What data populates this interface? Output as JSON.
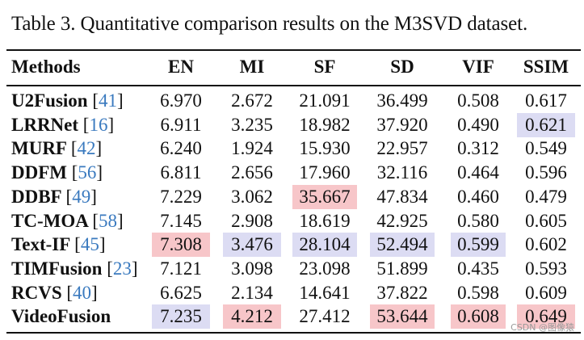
{
  "caption": "Table 3. Quantitative comparison results on the M3SVD dataset.",
  "headers": [
    "Methods",
    "EN",
    "MI",
    "SF",
    "SD",
    "VIF",
    "SSIM"
  ],
  "rows": [
    {
      "name": "U2Fusion",
      "ref": "41",
      "values": [
        "6.970",
        "2.672",
        "21.091",
        "36.499",
        "0.508",
        "0.617"
      ],
      "highlight": [
        "",
        "",
        "",
        "",
        "",
        ""
      ]
    },
    {
      "name": "LRRNet",
      "ref": "16",
      "values": [
        "6.911",
        "3.235",
        "18.982",
        "37.920",
        "0.490",
        "0.621"
      ],
      "highlight": [
        "",
        "",
        "",
        "",
        "",
        "blue"
      ]
    },
    {
      "name": "MURF",
      "ref": "42",
      "values": [
        "6.240",
        "1.924",
        "15.930",
        "22.957",
        "0.312",
        "0.549"
      ],
      "highlight": [
        "",
        "",
        "",
        "",
        "",
        ""
      ]
    },
    {
      "name": "DDFM",
      "ref": "56",
      "values": [
        "6.811",
        "2.656",
        "17.960",
        "32.116",
        "0.464",
        "0.596"
      ],
      "highlight": [
        "",
        "",
        "",
        "",
        "",
        ""
      ]
    },
    {
      "name": "DDBF",
      "ref": "49",
      "values": [
        "7.229",
        "3.062",
        "35.667",
        "47.834",
        "0.460",
        "0.479"
      ],
      "highlight": [
        "",
        "",
        "red",
        "",
        "",
        ""
      ]
    },
    {
      "name": "TC-MOA",
      "ref": "58",
      "values": [
        "7.145",
        "2.908",
        "18.619",
        "42.925",
        "0.580",
        "0.605"
      ],
      "highlight": [
        "",
        "",
        "",
        "",
        "",
        ""
      ]
    },
    {
      "name": "Text-IF",
      "ref": "45",
      "values": [
        "7.308",
        "3.476",
        "28.104",
        "52.494",
        "0.599",
        "0.602"
      ],
      "highlight": [
        "red",
        "blue",
        "blue",
        "blue",
        "blue",
        ""
      ]
    },
    {
      "name": "TIMFusion",
      "ref": "23",
      "values": [
        "7.121",
        "3.098",
        "23.098",
        "51.899",
        "0.435",
        "0.593"
      ],
      "highlight": [
        "",
        "",
        "",
        "",
        "",
        ""
      ]
    },
    {
      "name": "RCVS",
      "ref": "40",
      "values": [
        "6.625",
        "2.134",
        "14.641",
        "37.822",
        "0.598",
        "0.609"
      ],
      "highlight": [
        "",
        "",
        "",
        "",
        "",
        ""
      ]
    },
    {
      "name": "VideoFusion",
      "ref": "",
      "values": [
        "7.235",
        "4.212",
        "27.412",
        "53.644",
        "0.608",
        "0.649"
      ],
      "highlight": [
        "blue",
        "red",
        "",
        "red",
        "red",
        "red"
      ]
    }
  ],
  "watermark": "CSDN @图像猿",
  "colors": {
    "highlight_red": "#f7c6c9",
    "highlight_blue": "#dcdcf3",
    "citation": "#3a7abf"
  }
}
